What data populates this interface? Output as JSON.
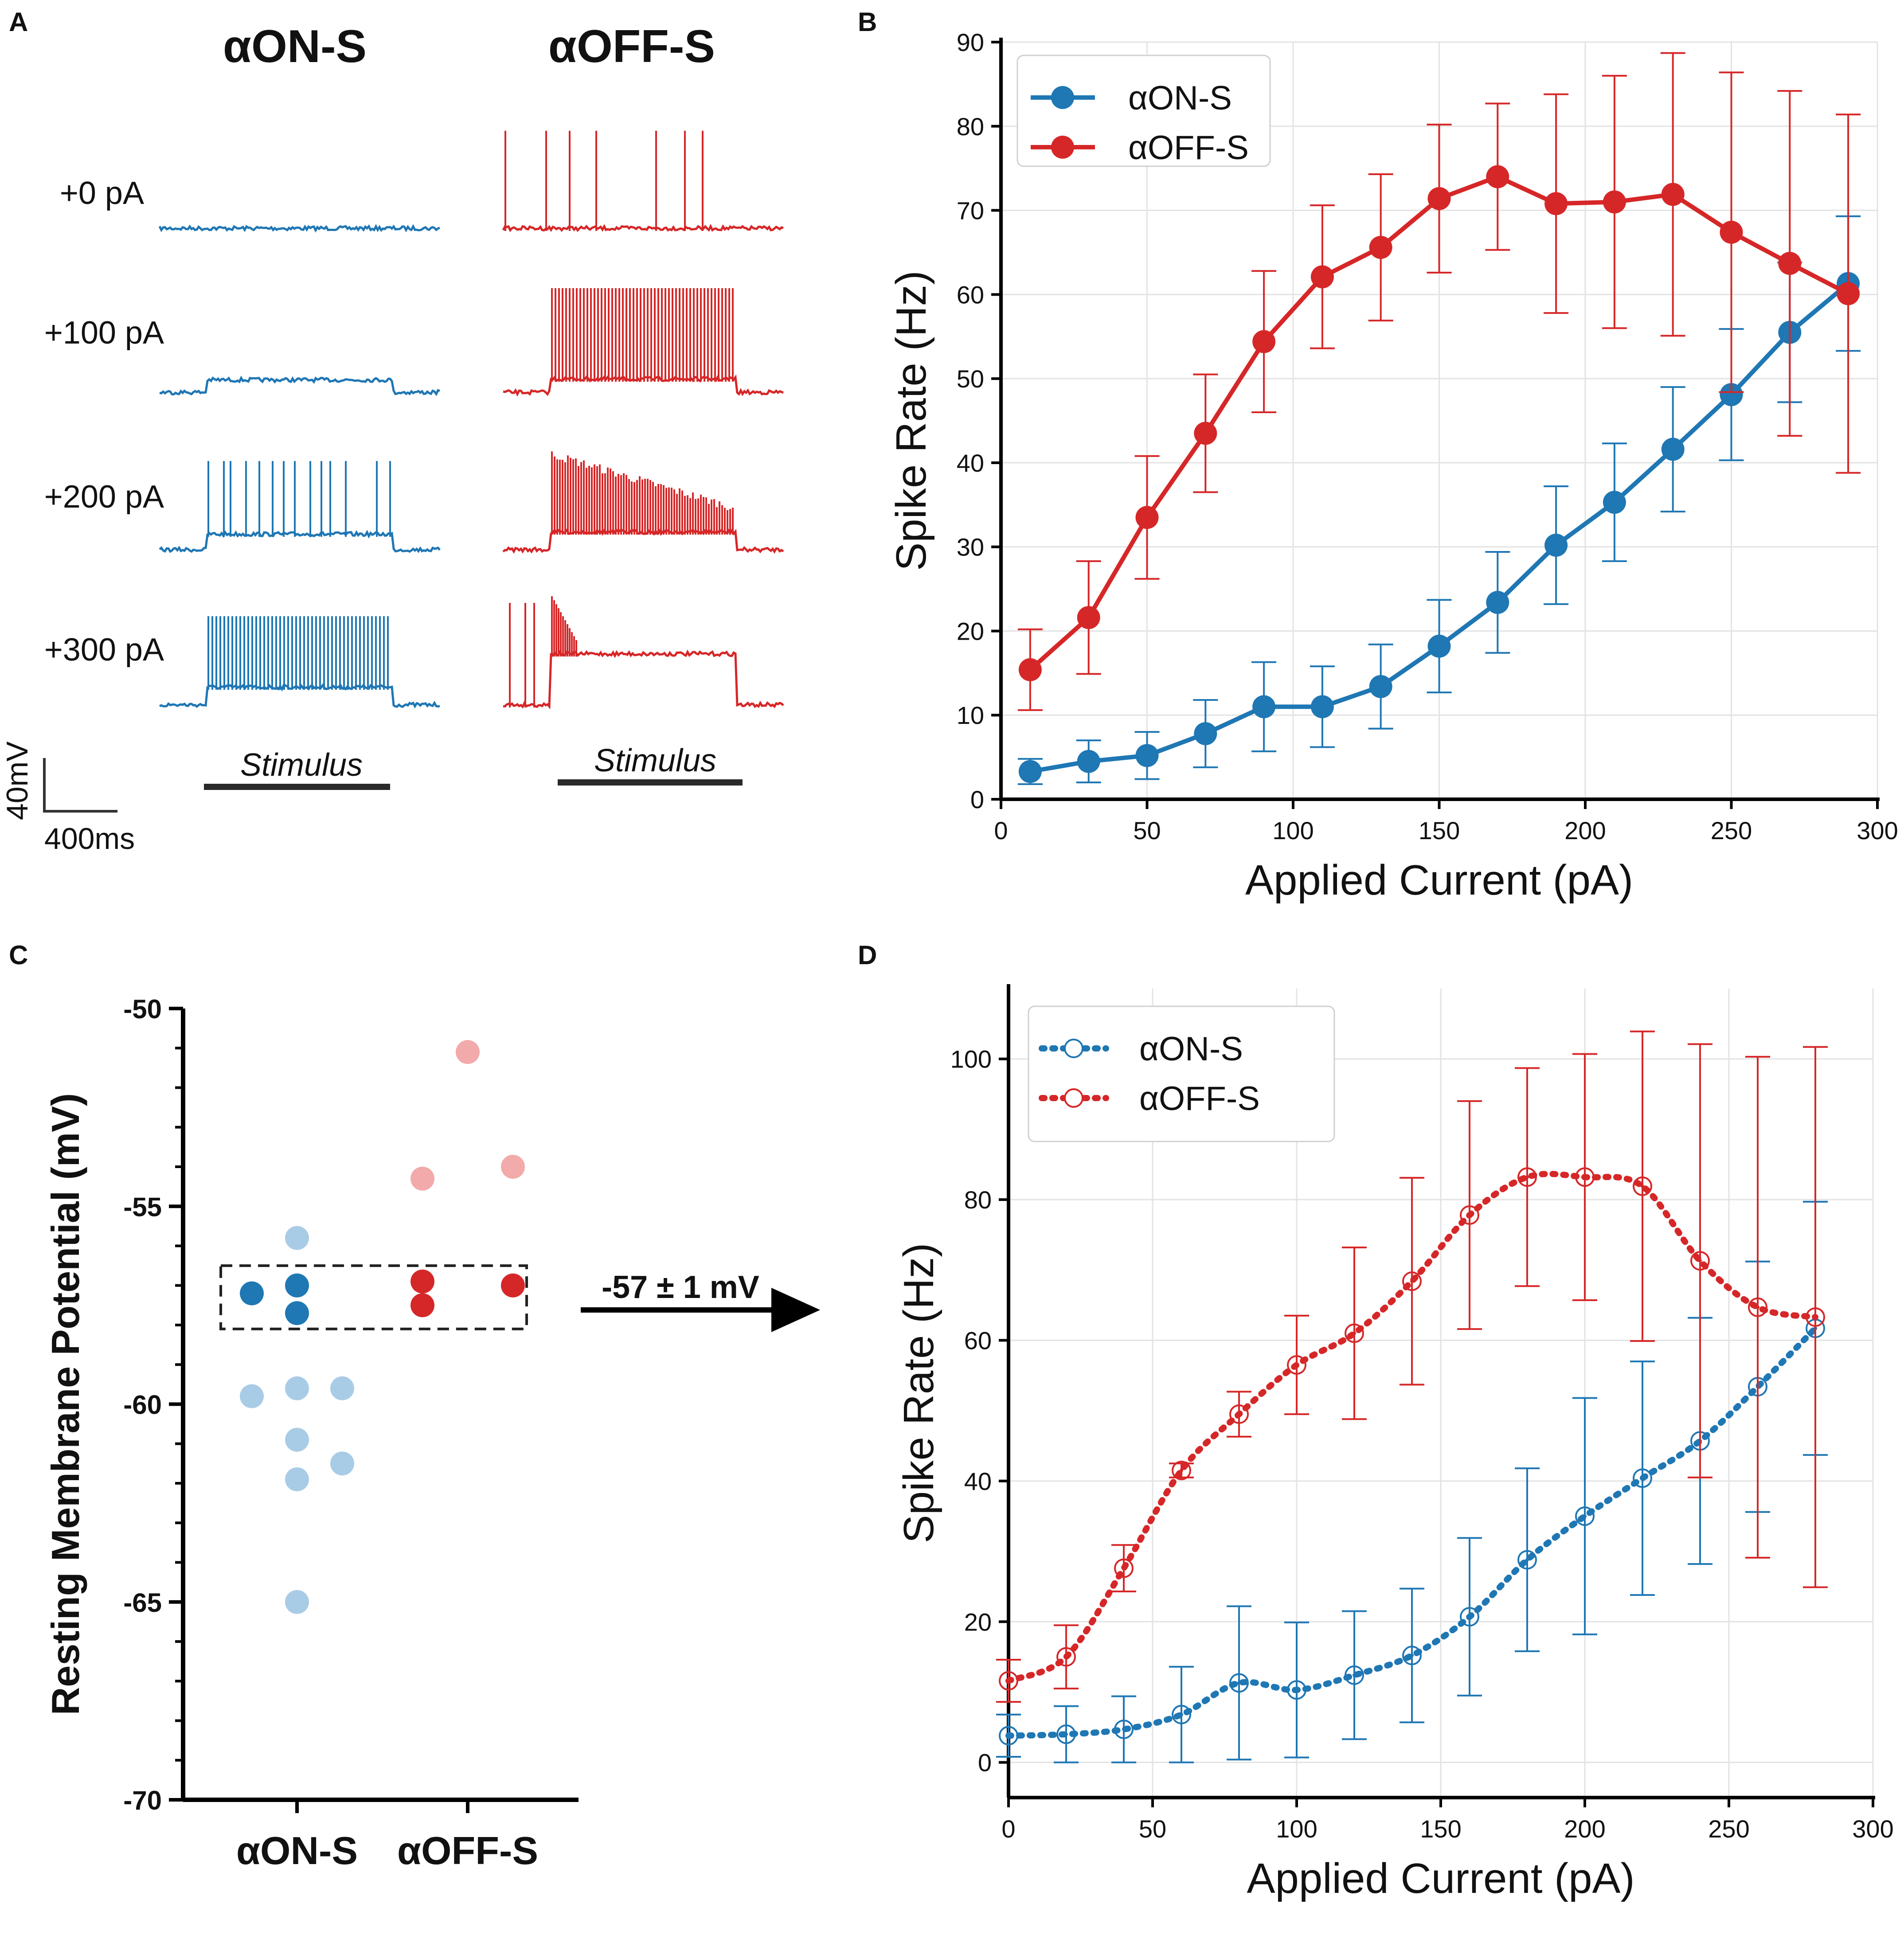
{
  "panels": {
    "A": {
      "letter": "A",
      "columns": [
        "αON-S",
        "αOFF-S"
      ],
      "currents": [
        "+0 pA",
        "+100 pA",
        "+200 pA",
        "+300 pA"
      ],
      "stimulus_label": "Stimulus",
      "scale_v": "40mV",
      "scale_t": "400ms"
    },
    "B": {
      "letter": "B"
    },
    "C": {
      "letter": "C",
      "annotation": "-57 ± 1 mV"
    },
    "D": {
      "letter": "D"
    }
  },
  "colors": {
    "on": "#1f77b4",
    "off": "#d62728",
    "on_light": "#a9cce6",
    "off_light": "#f2aaaa"
  },
  "chart_data": [
    {
      "id": "B",
      "type": "line",
      "title": "",
      "xlabel": "Applied Current (pA)",
      "ylabel": "Spike Rate (Hz)",
      "xlim": [
        0,
        300
      ],
      "ylim": [
        0,
        90
      ],
      "xticks": [
        0,
        50,
        100,
        150,
        200,
        250,
        300
      ],
      "yticks": [
        0,
        10,
        20,
        30,
        40,
        50,
        60,
        70,
        80,
        90
      ],
      "grid": true,
      "legend": "top-left",
      "x": [
        10,
        30,
        50,
        70,
        90,
        110,
        130,
        150,
        170,
        190,
        210,
        230,
        250,
        270,
        290
      ],
      "series": [
        {
          "name": "αON-S",
          "color": "#1f77b4",
          "values": [
            3.3,
            4.5,
            5.2,
            7.8,
            11,
            11,
            13.4,
            18.2,
            23.4,
            30.2,
            35.3,
            41.6,
            48.1,
            55.5,
            61.3
          ],
          "err": [
            1.5,
            2.5,
            2.8,
            4,
            5.3,
            4.8,
            5,
            5.5,
            6,
            7,
            7,
            7.4,
            7.8,
            8.3,
            8
          ]
        },
        {
          "name": "αOFF-S",
          "color": "#d62728",
          "values": [
            15.4,
            21.6,
            33.5,
            43.5,
            54.4,
            62.1,
            65.6,
            71.4,
            74,
            70.8,
            71,
            71.9,
            67.4,
            63.7,
            60.1
          ],
          "err": [
            4.8,
            6.7,
            7.3,
            7,
            8.4,
            8.5,
            8.7,
            8.8,
            8.7,
            13,
            15,
            16.8,
            19,
            20.5,
            21.3
          ]
        }
      ]
    },
    {
      "id": "C",
      "type": "scatter",
      "ylabel": "Resting Membrane Potential (mV)",
      "ylim": [
        -70,
        -50
      ],
      "yticks": [
        -50,
        -55,
        -60,
        -65,
        -70
      ],
      "categories": [
        "αON-S",
        "αOFF-S"
      ],
      "selection_band": [
        -58.1,
        -56.5
      ],
      "points": [
        {
          "group": "αON-S",
          "offset": 0,
          "value": -55.8,
          "selected": false
        },
        {
          "group": "αON-S",
          "offset": -1,
          "value": -57.2,
          "selected": true
        },
        {
          "group": "αON-S",
          "offset": 0,
          "value": -57.0,
          "selected": true
        },
        {
          "group": "αON-S",
          "offset": 0,
          "value": -57.7,
          "selected": true
        },
        {
          "group": "αON-S",
          "offset": -1,
          "value": -59.8,
          "selected": false
        },
        {
          "group": "αON-S",
          "offset": 0,
          "value": -59.6,
          "selected": false
        },
        {
          "group": "αON-S",
          "offset": 1,
          "value": -59.6,
          "selected": false
        },
        {
          "group": "αON-S",
          "offset": 0,
          "value": -60.9,
          "selected": false
        },
        {
          "group": "αON-S",
          "offset": 0,
          "value": -61.9,
          "selected": false
        },
        {
          "group": "αON-S",
          "offset": 1,
          "value": -61.5,
          "selected": false
        },
        {
          "group": "αON-S",
          "offset": 0,
          "value": -65.0,
          "selected": false
        },
        {
          "group": "αOFF-S",
          "offset": 0,
          "value": -51.1,
          "selected": false
        },
        {
          "group": "αOFF-S",
          "offset": -1,
          "value": -54.3,
          "selected": false
        },
        {
          "group": "αOFF-S",
          "offset": 1,
          "value": -54.0,
          "selected": false
        },
        {
          "group": "αOFF-S",
          "offset": -1,
          "value": -56.9,
          "selected": true
        },
        {
          "group": "αOFF-S",
          "offset": -1,
          "value": -57.5,
          "selected": true
        },
        {
          "group": "αOFF-S",
          "offset": 1,
          "value": -57.0,
          "selected": true
        }
      ]
    },
    {
      "id": "D",
      "type": "line",
      "title": "",
      "xlabel": "Applied Current (pA)",
      "ylabel": "Spike Rate (Hz)",
      "xlim": [
        0,
        300
      ],
      "ylim": [
        -5,
        110
      ],
      "xticks": [
        0,
        50,
        100,
        150,
        200,
        250,
        300
      ],
      "yticks": [
        0,
        20,
        40,
        60,
        80,
        100
      ],
      "grid": true,
      "legend": "top-left",
      "x": [
        0,
        20,
        40,
        60,
        80,
        100,
        120,
        140,
        160,
        180,
        200,
        220,
        240,
        260,
        280
      ],
      "series": [
        {
          "name": "αON-S",
          "color": "#1f77b4",
          "values": [
            3.8,
            4,
            4.7,
            6.8,
            11.3,
            10.3,
            12.4,
            15.2,
            20.7,
            28.8,
            35,
            40.4,
            45.7,
            53.4,
            61.7
          ],
          "err": [
            3,
            4,
            4.7,
            6.8,
            10.9,
            9.6,
            9.1,
            9.5,
            11.2,
            13,
            16.8,
            16.6,
            17.5,
            17.8,
            18
          ]
        },
        {
          "name": "αOFF-S",
          "color": "#d62728",
          "values": [
            11.6,
            15,
            27.6,
            41.5,
            49.5,
            56.5,
            61,
            68.4,
            77.8,
            83.2,
            83.2,
            81.9,
            71.3,
            64.7,
            63.3
          ],
          "err": [
            3,
            4.5,
            3.3,
            1,
            3.2,
            7,
            12.2,
            14.7,
            16.2,
            15.5,
            17.5,
            22,
            30.8,
            35.6,
            38.4
          ]
        }
      ]
    }
  ]
}
